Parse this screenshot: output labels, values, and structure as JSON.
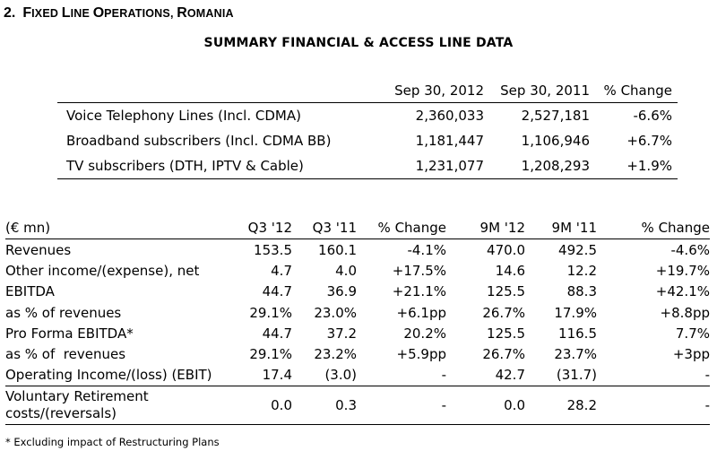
{
  "section": {
    "number": "2.",
    "title_parts": [
      {
        "big": "F",
        "small": "IXED "
      },
      {
        "big": "L",
        "small": "INE "
      },
      {
        "big": "O",
        "small": "PERATIONS, "
      },
      {
        "big": "R",
        "small": "OMANIA"
      }
    ]
  },
  "subtitle": "SUMMARY FINANCIAL & ACCESS LINE DATA",
  "access": {
    "headers": [
      "Sep 30, 2012",
      "Sep 30, 2011",
      "% Change"
    ],
    "rows": [
      {
        "label": "Voice Telephony Lines (Incl. CDMA)",
        "v1": "2,360,033",
        "v2": "2,527,181",
        "chg": "-6.6%"
      },
      {
        "label": "Broadband subscribers (Incl. CDMA BB)",
        "v1": "1,181,447",
        "v2": "1,106,946",
        "chg": "+6.7%"
      },
      {
        "label": "TV subscribers (DTH, IPTV & Cable)",
        "v1": "1,231,077",
        "v2": "1,208,293",
        "chg": "+1.9%"
      }
    ]
  },
  "financial": {
    "headers": [
      "(€ mn)",
      "Q3 '12",
      "Q3 '11",
      "% Change",
      "9M '12",
      "9M '11",
      "% Change"
    ],
    "rows": [
      {
        "label": "Revenues",
        "c": [
          "153.5",
          "160.1",
          "-4.1%",
          "470.0",
          "492.5",
          "-4.6%"
        ]
      },
      {
        "label": "Other income/(expense), net",
        "c": [
          "4.7",
          "4.0",
          "+17.5%",
          "14.6",
          "12.2",
          "+19.7%"
        ]
      },
      {
        "label": "EBITDA",
        "c": [
          "44.7",
          "36.9",
          "+21.1%",
          "125.5",
          "88.3",
          "+42.1%"
        ]
      },
      {
        "label": "as % of revenues",
        "c": [
          "29.1%",
          "23.0%",
          "+6.1pp",
          "26.7%",
          "17.9%",
          "+8.8pp"
        ]
      },
      {
        "label": "Pro Forma EBITDA*",
        "c": [
          "44.7",
          "37.2",
          "20.2%",
          "125.5",
          "116.5",
          "7.7%"
        ]
      },
      {
        "label": "as % of  revenues",
        "c": [
          "29.1%",
          "23.2%",
          "+5.9pp",
          "26.7%",
          "23.7%",
          "+3pp"
        ]
      },
      {
        "label": "Operating Income/(loss) (EBIT)",
        "c": [
          "17.4",
          "(3.0)",
          "-",
          "42.7",
          "(31.7)",
          "-"
        ]
      },
      {
        "label_lines": [
          "Voluntary Retirement",
          "costs/(reversals)"
        ],
        "c": [
          "0.0",
          "0.3",
          "-",
          "0.0",
          "28.2",
          "-"
        ]
      }
    ]
  },
  "footnote": "* Excluding impact of Restructuring Plans"
}
